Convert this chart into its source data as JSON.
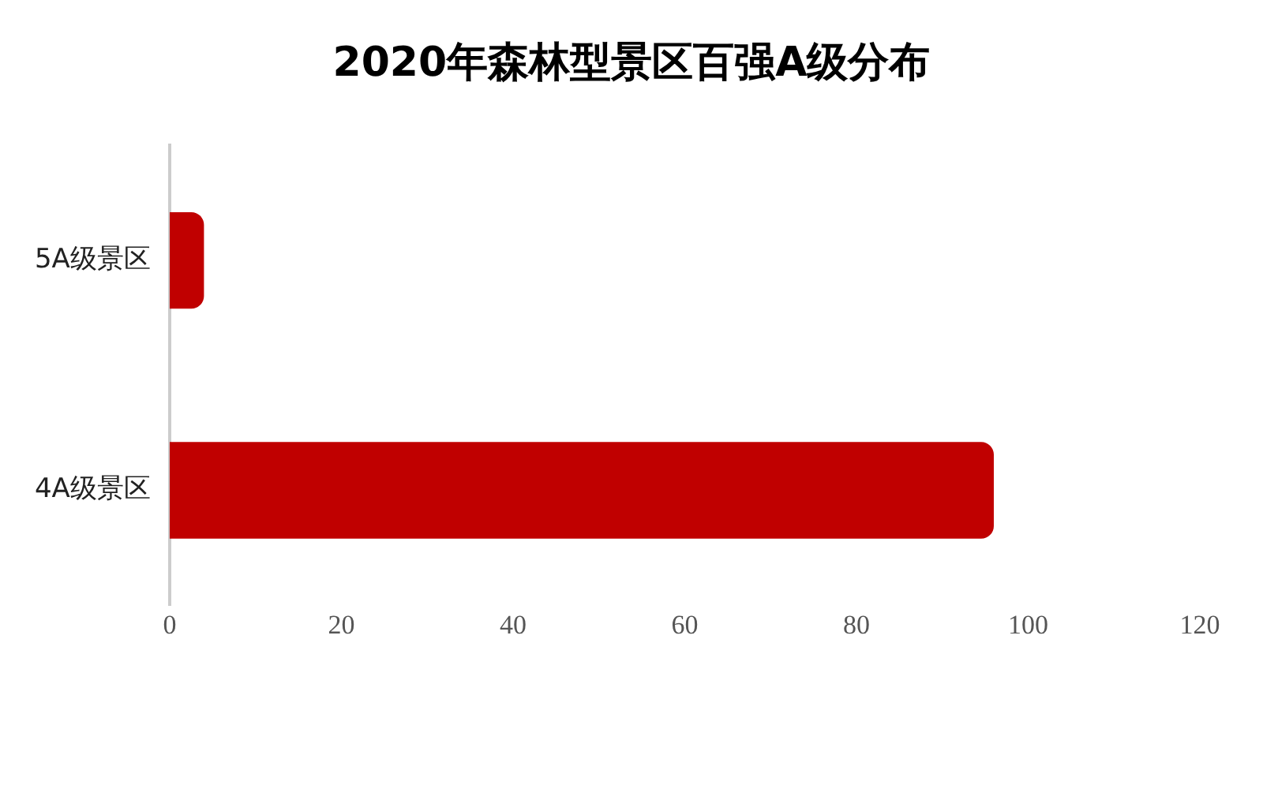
{
  "chart_data": {
    "type": "bar",
    "orientation": "horizontal",
    "title": "2020年森林型景区百强A级分布",
    "categories": [
      "5A级景区",
      "4A级景区"
    ],
    "values": [
      4,
      96
    ],
    "color": "#c00000",
    "xlim": [
      0,
      120
    ],
    "xticks": [
      0,
      20,
      40,
      60,
      80,
      100,
      120
    ]
  }
}
